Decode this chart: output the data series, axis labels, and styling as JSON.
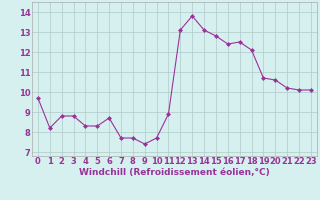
{
  "x": [
    0,
    1,
    2,
    3,
    4,
    5,
    6,
    7,
    8,
    9,
    10,
    11,
    12,
    13,
    14,
    15,
    16,
    17,
    18,
    19,
    20,
    21,
    22,
    23
  ],
  "y": [
    9.7,
    8.2,
    8.8,
    8.8,
    8.3,
    8.3,
    8.7,
    7.7,
    7.7,
    7.4,
    7.7,
    8.9,
    13.1,
    13.8,
    13.1,
    12.8,
    12.4,
    12.5,
    12.1,
    10.7,
    10.6,
    10.2,
    10.1,
    10.1
  ],
  "line_color": "#993399",
  "marker": "D",
  "marker_size": 2.0,
  "bg_color": "#d6f0f0",
  "grid_color": "#b0c8c8",
  "xlabel": "Windchill (Refroidissement éolien,°C)",
  "xlabel_fontsize": 6.5,
  "tick_fontsize": 6.0,
  "ylim": [
    6.8,
    14.5
  ],
  "yticks": [
    7,
    8,
    9,
    10,
    11,
    12,
    13,
    14
  ],
  "xlim": [
    -0.5,
    23.5
  ],
  "xticks": [
    0,
    1,
    2,
    3,
    4,
    5,
    6,
    7,
    8,
    9,
    10,
    11,
    12,
    13,
    14,
    15,
    16,
    17,
    18,
    19,
    20,
    21,
    22,
    23
  ]
}
